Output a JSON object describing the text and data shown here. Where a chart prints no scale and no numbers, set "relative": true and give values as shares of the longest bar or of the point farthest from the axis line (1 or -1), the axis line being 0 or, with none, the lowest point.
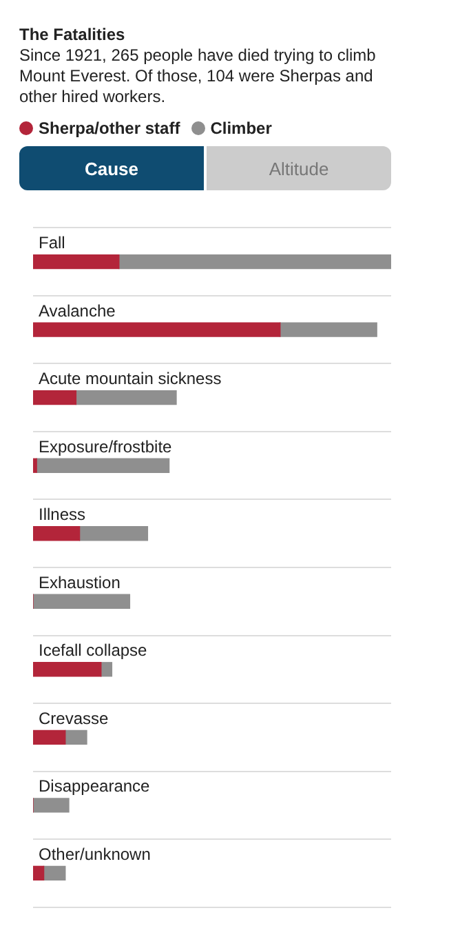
{
  "chart_data": {
    "type": "bar",
    "orientation": "horizontal",
    "stacked": true,
    "relative": true,
    "title": "The Fatalities",
    "subtitle": "Since 1921, 265 people have died trying to climb Mount Everest. Of those, 104 were Sherpas and other hired workers.",
    "legend": "top left",
    "annotations": [
      "Cause",
      "Altitude"
    ],
    "categories": [
      "Fall",
      "Avalanche",
      "Acute mountain sickness",
      "Exposure/frostbite",
      "Illness",
      "Exhaustion",
      "Icefall collapse",
      "Crevasse",
      "Disappearance",
      "Other/unknown"
    ],
    "series": [
      {
        "name": "Sherpa/other staff",
        "color": "#b3253a",
        "values": [
          0.24,
          0.69,
          0.12,
          0.01,
          0.13,
          0,
          0.19,
          0.09,
          0,
          0.03
        ]
      },
      {
        "name": "Climber",
        "color": "#8f8f8f",
        "values": [
          0.76,
          0.27,
          0.28,
          0.37,
          0.19,
          0.27,
          0.03,
          0.06,
          0.1,
          0.06
        ]
      }
    ]
  }
}
